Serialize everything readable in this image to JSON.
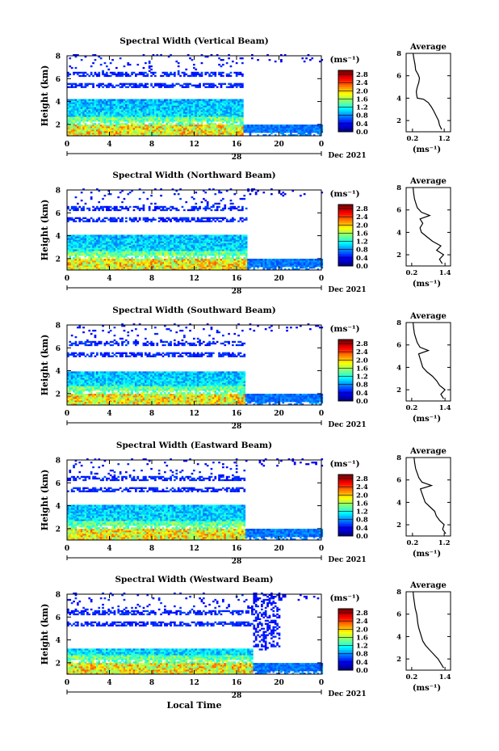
{
  "figure": {
    "xlabel": "Local Time",
    "colorbar_unit": "(ms⁻¹)",
    "avg_unit": "(ms⁻¹)",
    "avg_title": "Average",
    "date_day": "28",
    "date_label": "Dec 2021"
  },
  "chart_data": [
    {
      "type": "heatmap",
      "title": "Spectral Width (Vertical Beam)",
      "xlabel": "",
      "ylabel": "Height (km)",
      "x_ticks": [
        "0",
        "4",
        "8",
        "12",
        "16",
        "20",
        "0"
      ],
      "y_ticks": [
        "2",
        "4",
        "6",
        "8"
      ],
      "xlim": [
        0,
        24
      ],
      "ylim": [
        1,
        8
      ],
      "colorbar_ticks": [
        "0.0",
        "0.4",
        "0.8",
        "1.2",
        "1.6",
        "2.0",
        "2.4",
        "2.8"
      ],
      "colorbar_range": [
        0.0,
        3.0
      ],
      "average_profile": {
        "x_ticks": [
          "0.2",
          "1.2"
        ],
        "xlim": [
          0.0,
          1.4
        ],
        "y_ticks": [
          "2",
          "4",
          "6",
          "8"
        ],
        "ylim": [
          1,
          8
        ],
        "heights": [
          1.2,
          1.6,
          2.0,
          2.4,
          2.8,
          3.2,
          3.6,
          3.9,
          4.0,
          4.3,
          4.6,
          5.0,
          5.4,
          5.8,
          6.1,
          6.5,
          7.0,
          7.6,
          8.0
        ],
        "values": [
          1.12,
          1.05,
          1.02,
          0.95,
          0.88,
          0.8,
          0.7,
          0.55,
          0.35,
          0.33,
          0.32,
          0.35,
          0.4,
          0.42,
          0.38,
          0.3,
          0.28,
          0.24,
          0.22
        ]
      }
    },
    {
      "type": "heatmap",
      "title": "Spectral Width (Northward Beam)",
      "xlabel": "",
      "ylabel": "Height (km)",
      "x_ticks": [
        "0",
        "4",
        "8",
        "12",
        "16",
        "20",
        "0"
      ],
      "y_ticks": [
        "2",
        "4",
        "6",
        "8"
      ],
      "xlim": [
        0,
        24
      ],
      "ylim": [
        1,
        8
      ],
      "colorbar_ticks": [
        "0.0",
        "0.4",
        "0.8",
        "1.2",
        "1.6",
        "2.0",
        "2.4",
        "2.8"
      ],
      "colorbar_range": [
        0.0,
        3.0
      ],
      "average_profile": {
        "x_ticks": [
          "0.2",
          "1.4"
        ],
        "xlim": [
          0.0,
          1.6
        ],
        "y_ticks": [
          "2",
          "4",
          "6",
          "8"
        ],
        "ylim": [
          1,
          8
        ],
        "heights": [
          1.2,
          1.6,
          2.0,
          2.4,
          2.8,
          3.2,
          3.6,
          4.0,
          4.4,
          4.8,
          5.2,
          5.5,
          5.8,
          6.2,
          6.6,
          7.0,
          7.5,
          8.0
        ],
        "values": [
          1.3,
          1.2,
          1.35,
          1.1,
          1.25,
          0.95,
          0.75,
          0.55,
          0.5,
          0.6,
          0.5,
          0.85,
          0.55,
          0.4,
          0.35,
          0.3,
          0.27,
          0.25
        ]
      }
    },
    {
      "type": "heatmap",
      "title": "Spectral Width (Southward Beam)",
      "xlabel": "",
      "ylabel": "Height (km)",
      "x_ticks": [
        "0",
        "4",
        "8",
        "12",
        "16",
        "20",
        "0"
      ],
      "y_ticks": [
        "2",
        "4",
        "6",
        "8"
      ],
      "xlim": [
        0,
        24
      ],
      "ylim": [
        1,
        8
      ],
      "colorbar_ticks": [
        "0.0",
        "0.4",
        "0.8",
        "1.2",
        "1.6",
        "2.0",
        "2.4",
        "2.8"
      ],
      "colorbar_range": [
        0.0,
        3.0
      ],
      "average_profile": {
        "x_ticks": [
          "0.2",
          "1.4"
        ],
        "xlim": [
          0.0,
          1.6
        ],
        "y_ticks": [
          "2",
          "4",
          "6",
          "8"
        ],
        "ylim": [
          1,
          8
        ],
        "heights": [
          1.2,
          1.6,
          2.0,
          2.4,
          2.8,
          3.2,
          3.6,
          4.0,
          4.4,
          4.8,
          5.2,
          5.5,
          5.8,
          6.2,
          6.6,
          7.0,
          7.5,
          8.0
        ],
        "values": [
          1.35,
          1.25,
          1.4,
          1.2,
          1.1,
          0.95,
          0.75,
          0.6,
          0.55,
          0.5,
          0.45,
          0.8,
          0.5,
          0.4,
          0.35,
          0.3,
          0.27,
          0.25
        ]
      }
    },
    {
      "type": "heatmap",
      "title": "Spectral Width (Eastward Beam)",
      "xlabel": "",
      "ylabel": "Height (km)",
      "x_ticks": [
        "0",
        "4",
        "8",
        "12",
        "16",
        "20",
        "0"
      ],
      "y_ticks": [
        "2",
        "4",
        "6",
        "8"
      ],
      "xlim": [
        0,
        24
      ],
      "ylim": [
        1,
        8
      ],
      "colorbar_ticks": [
        "0.0",
        "0.4",
        "0.8",
        "1.2",
        "1.6",
        "2.0",
        "2.4",
        "2.8"
      ],
      "colorbar_range": [
        0.0,
        3.0
      ],
      "average_profile": {
        "x_ticks": [
          "0.2",
          "1.2"
        ],
        "xlim": [
          0.0,
          1.4
        ],
        "y_ticks": [
          "2",
          "4",
          "6",
          "8"
        ],
        "ylim": [
          1,
          8
        ],
        "heights": [
          1.2,
          1.6,
          2.0,
          2.4,
          2.8,
          3.2,
          3.6,
          4.0,
          4.4,
          4.8,
          5.2,
          5.5,
          5.8,
          6.2,
          6.6,
          7.0,
          7.5,
          8.0
        ],
        "values": [
          1.25,
          1.15,
          1.2,
          1.05,
          0.95,
          0.9,
          0.75,
          0.6,
          0.55,
          0.5,
          0.45,
          0.8,
          0.5,
          0.4,
          0.35,
          0.3,
          0.27,
          0.25
        ]
      }
    },
    {
      "type": "heatmap",
      "title": "Spectral Width (Westward Beam)",
      "xlabel": "Local Time",
      "ylabel": "Height (km)",
      "x_ticks": [
        "0",
        "4",
        "8",
        "12",
        "16",
        "20",
        "0"
      ],
      "y_ticks": [
        "2",
        "4",
        "6",
        "8"
      ],
      "xlim": [
        0,
        24
      ],
      "ylim": [
        1,
        8
      ],
      "colorbar_ticks": [
        "0.0",
        "0.4",
        "0.8",
        "1.2",
        "1.6",
        "2.0",
        "2.4",
        "2.8"
      ],
      "colorbar_range": [
        0.0,
        3.0
      ],
      "average_profile": {
        "x_ticks": [
          "0.2",
          "1.4"
        ],
        "xlim": [
          0.0,
          1.6
        ],
        "y_ticks": [
          "2",
          "4",
          "6",
          "8"
        ],
        "ylim": [
          1,
          8
        ],
        "heights": [
          1.2,
          1.6,
          2.0,
          2.4,
          2.8,
          3.2,
          3.6,
          4.0,
          4.4,
          4.8,
          5.2,
          5.6,
          6.0,
          6.5,
          7.0,
          7.5,
          8.0
        ],
        "values": [
          1.35,
          1.25,
          1.15,
          1.0,
          0.85,
          0.7,
          0.6,
          0.55,
          0.5,
          0.45,
          0.42,
          0.4,
          0.38,
          0.33,
          0.3,
          0.27,
          0.25
        ]
      }
    }
  ]
}
